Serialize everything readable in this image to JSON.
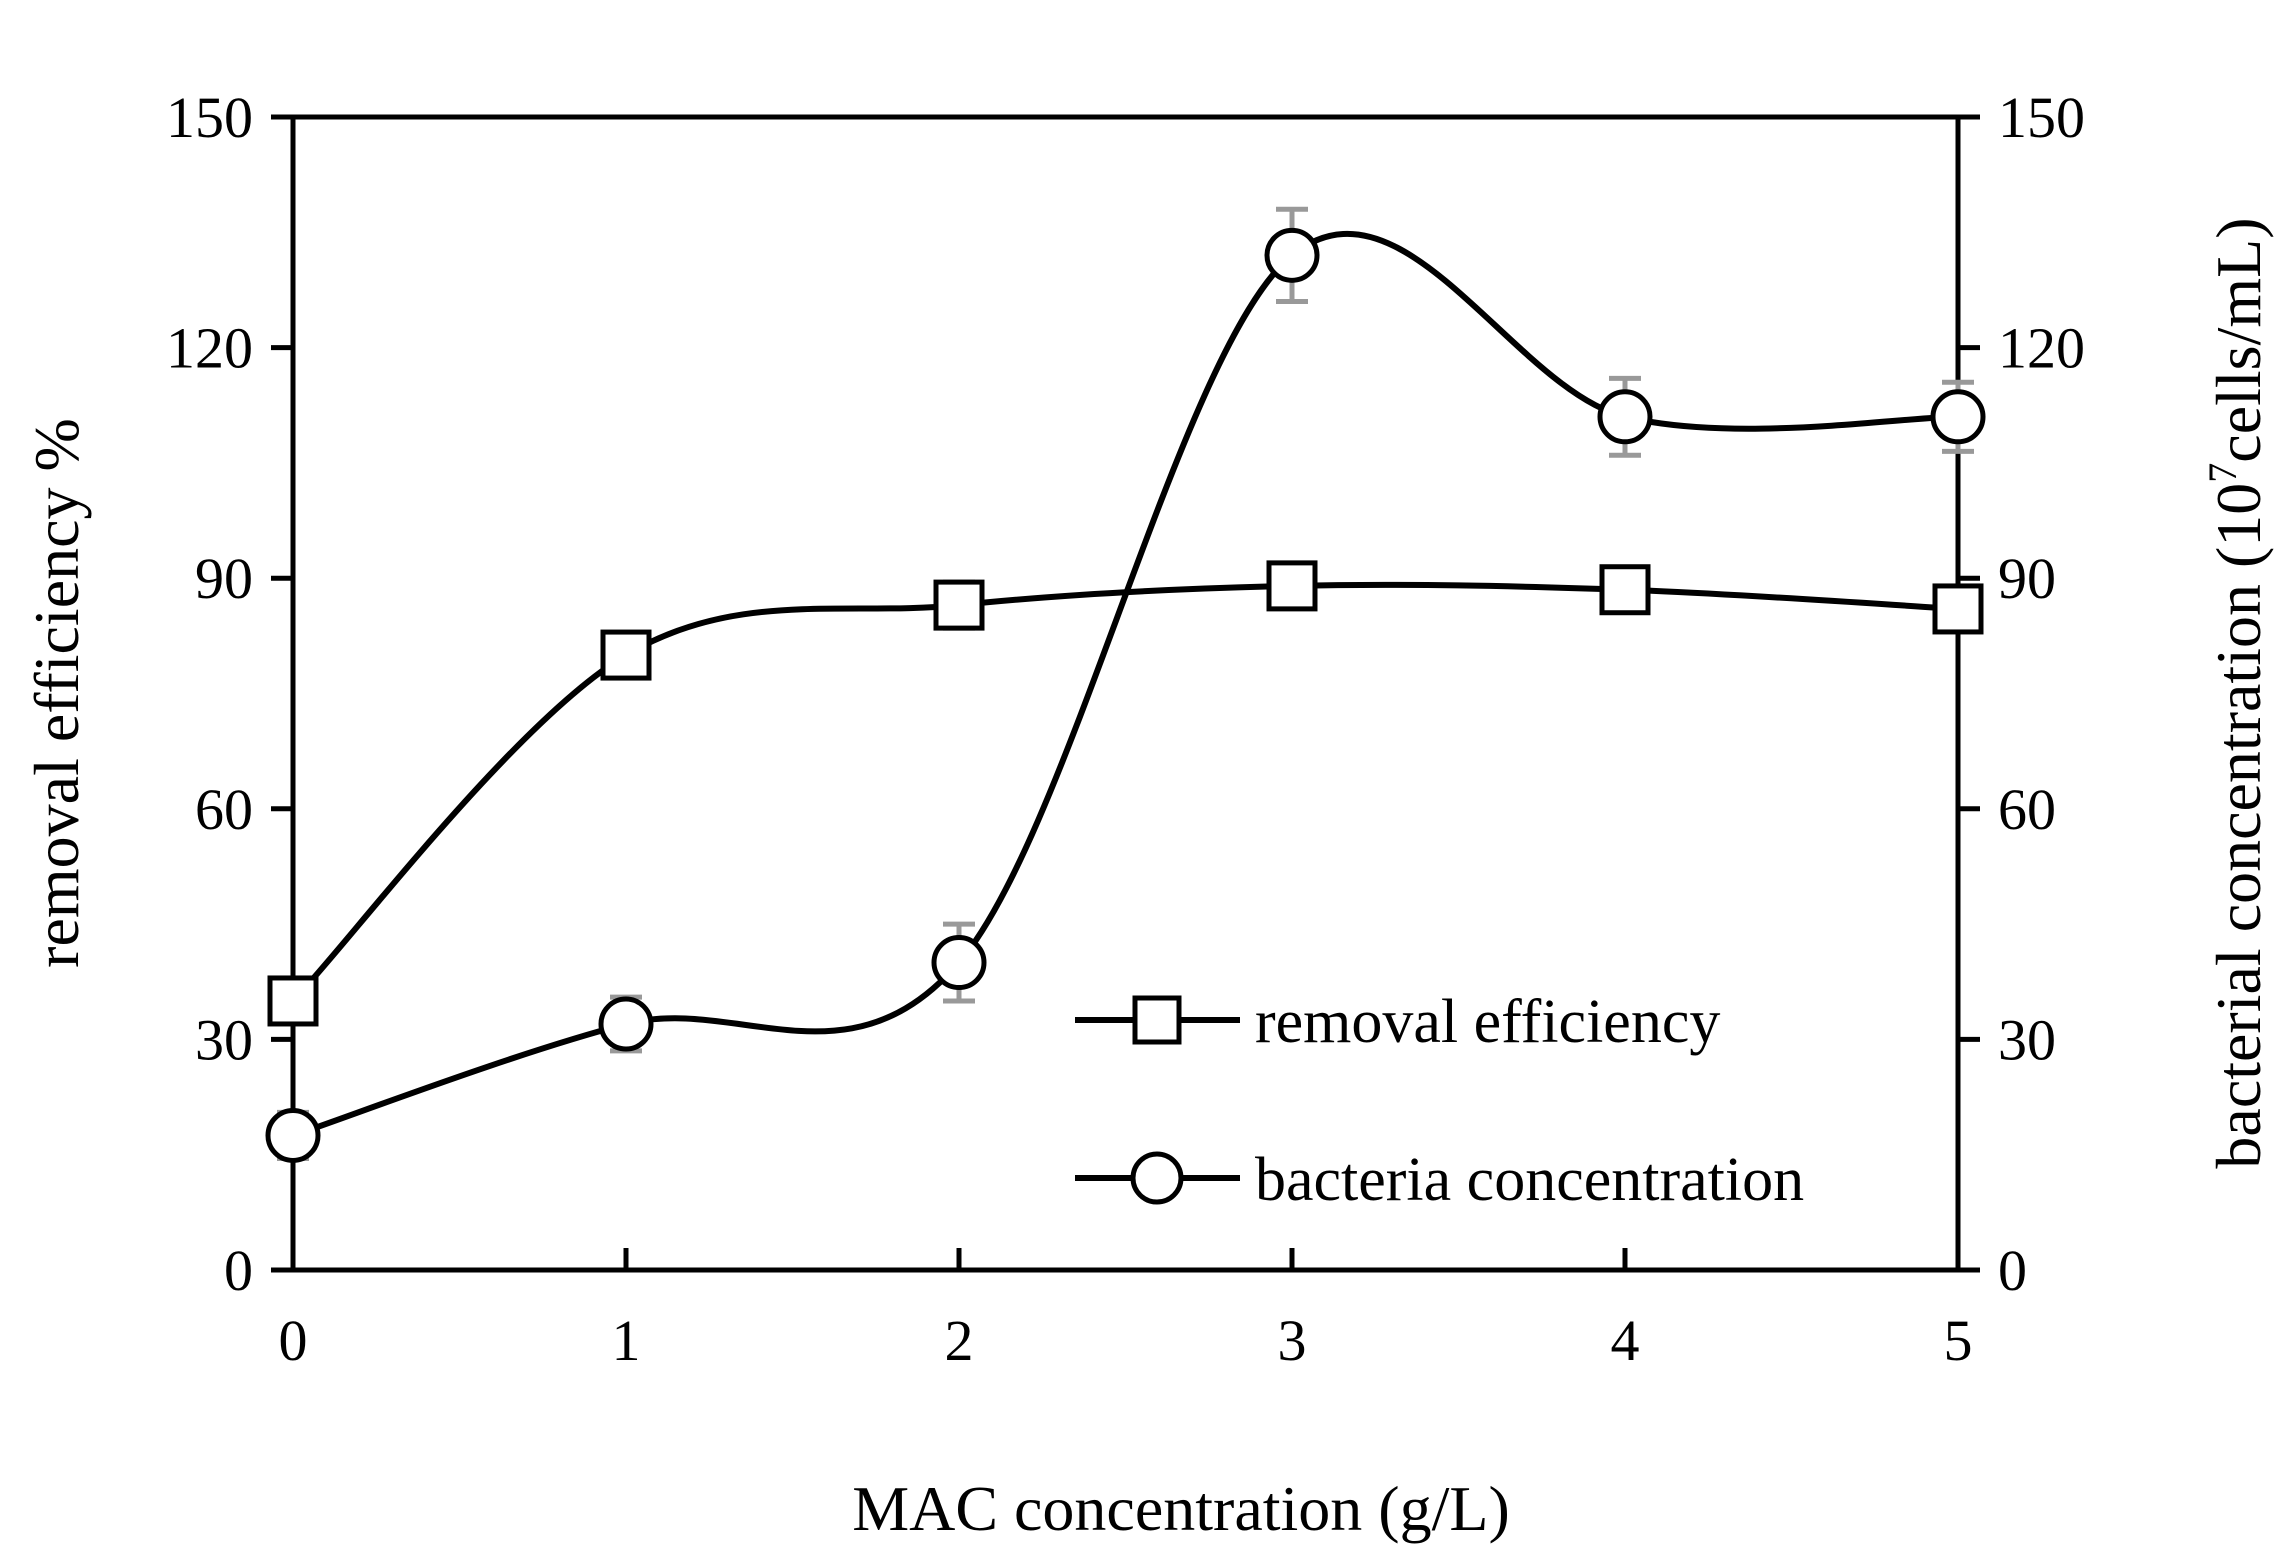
{
  "chart_data": {
    "type": "line",
    "title": "",
    "xlabel": "MAC concentration (g/L)",
    "ylabel": "removal efficiency %",
    "y2label_prefix": "bacterial concentration (10",
    "y2label_sup": "7",
    "y2label_suffix": "cells/mL)",
    "xlim": [
      0,
      5
    ],
    "ylim": [
      0,
      150
    ],
    "y2lim": [
      0,
      150
    ],
    "x_ticks": [
      "0",
      "1",
      "2",
      "3",
      "4",
      "5"
    ],
    "y_ticks": [
      "0",
      "30",
      "60",
      "90",
      "120",
      "150"
    ],
    "y2_ticks": [
      "0",
      "30",
      "60",
      "90",
      "120",
      "150"
    ],
    "grid": false,
    "legend_position": "bottom-right",
    "series": [
      {
        "name": "removal efficiency",
        "marker": "square",
        "axis": "left",
        "x": [
          0,
          1,
          2,
          3,
          4,
          5
        ],
        "y": [
          35,
          80,
          86.5,
          89,
          88.5,
          86
        ],
        "error": [
          0,
          2,
          3,
          2,
          1.5,
          1.5
        ]
      },
      {
        "name": "bacteria concentration",
        "marker": "circle",
        "axis": "right",
        "x": [
          0,
          1,
          2,
          3,
          4,
          5
        ],
        "y": [
          17.5,
          32,
          40,
          132,
          111,
          111
        ],
        "error": [
          3,
          3.5,
          5,
          6,
          5,
          4.5
        ]
      }
    ],
    "colors": {
      "line": "#000000",
      "error_bar": "#999999",
      "marker_fill": "#ffffff"
    }
  }
}
